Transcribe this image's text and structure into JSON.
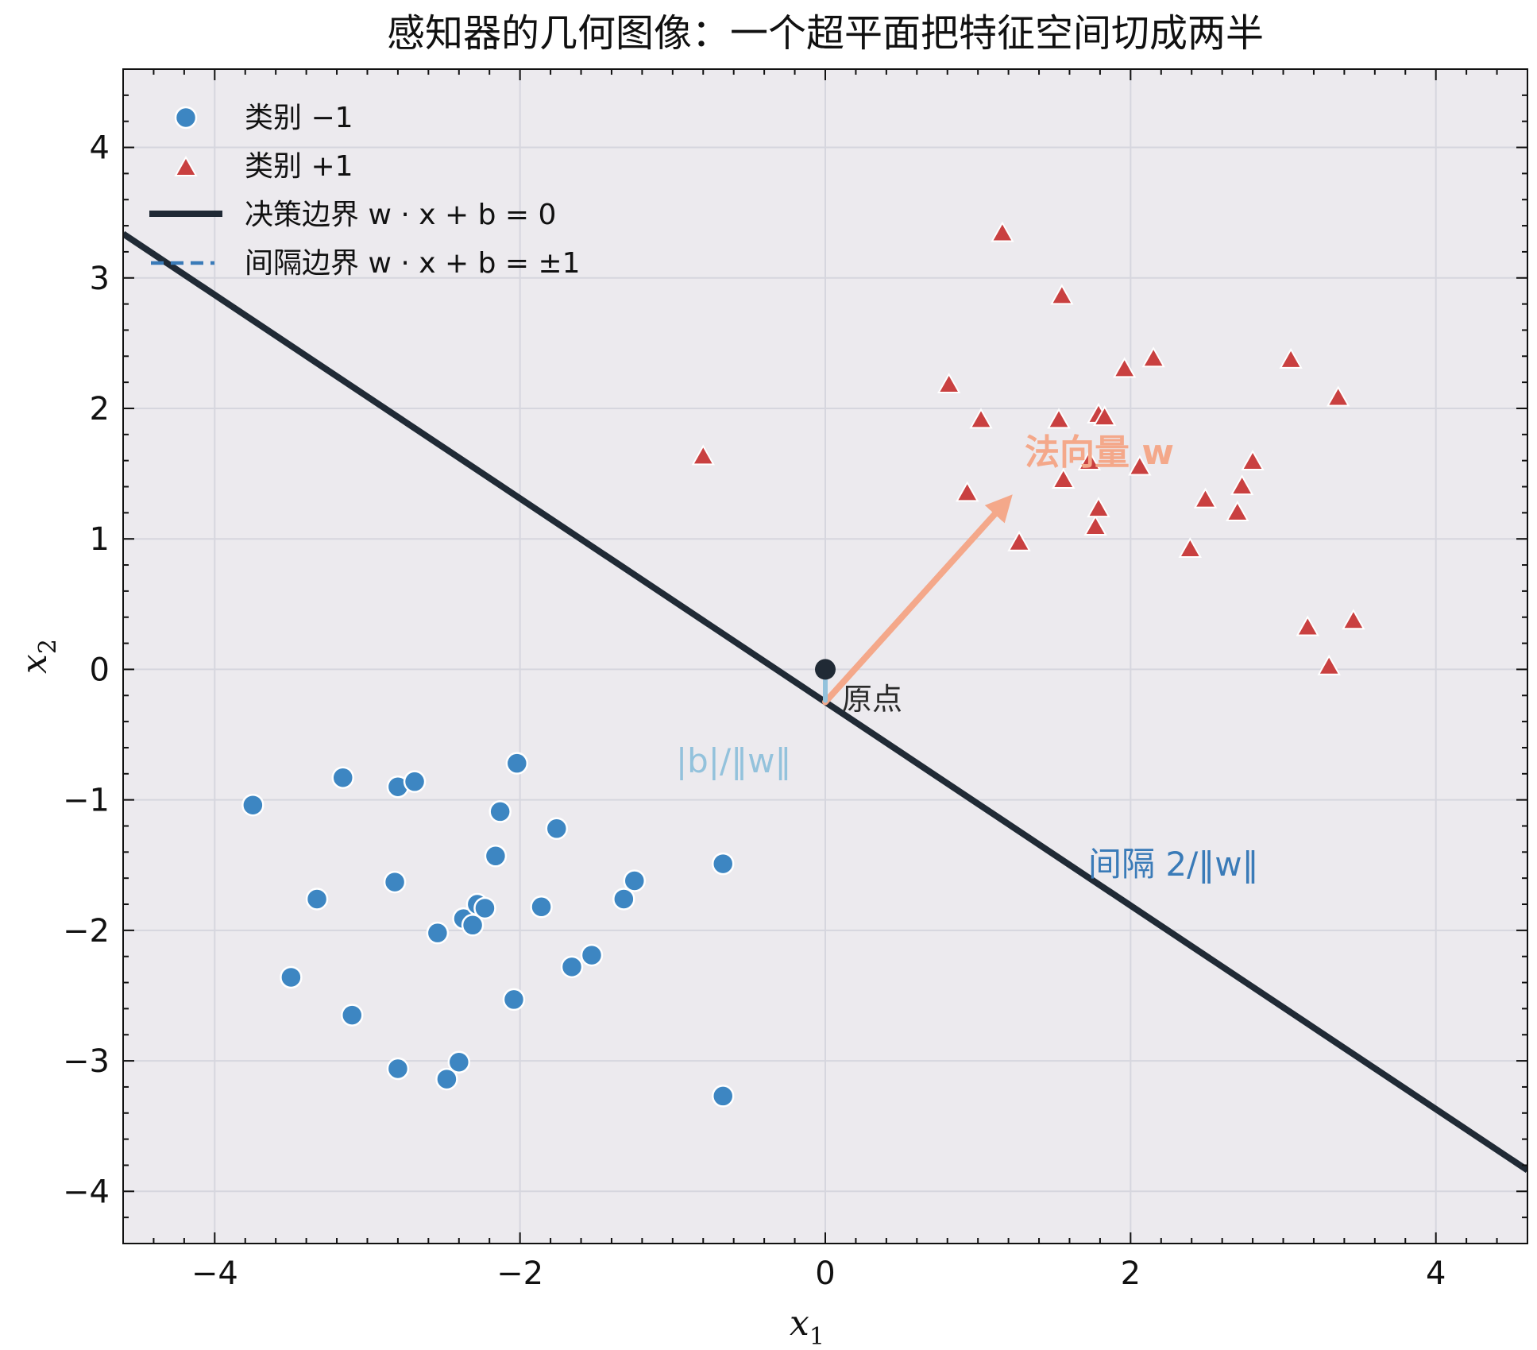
{
  "chart_data": {
    "type": "scatter",
    "title": "感知器的几何图像：一个超平面把特征空间切成两半",
    "xlim": [
      -4.6,
      4.6
    ],
    "ylim": [
      -4.4,
      4.6
    ],
    "x_ticks": [
      -4,
      -2,
      0,
      2,
      4
    ],
    "y_ticks": [
      -4,
      -3,
      -2,
      -1,
      0,
      1,
      2,
      3,
      4
    ],
    "x_tick_labels": [
      "−4",
      "−2",
      "0",
      "2",
      "4"
    ],
    "y_tick_labels": [
      "−4",
      "−3",
      "−2",
      "−1",
      "0",
      "1",
      "2",
      "3",
      "4"
    ],
    "xlabel": {
      "main": "x",
      "sub": "1"
    },
    "ylabel": {
      "main": "x",
      "sub": "2"
    },
    "grid": true,
    "legend_position": "top-left",
    "colors": {
      "background": "#eceaee",
      "class_neg": "#3d86c2",
      "class_pos": "#c94040",
      "boundary": "#202a35",
      "margin": "#3a7bb8",
      "normal": "#f4a88a",
      "distance": "#93c2dc",
      "grid": "#d6d6de"
    },
    "series": [
      {
        "name": "类别 −1",
        "marker": "circle",
        "points": [
          [
            -3.75,
            -1.04
          ],
          [
            -3.5,
            -2.36
          ],
          [
            -3.33,
            -1.76
          ],
          [
            -3.16,
            -0.83
          ],
          [
            -3.1,
            -2.65
          ],
          [
            -2.82,
            -1.63
          ],
          [
            -2.8,
            -0.9
          ],
          [
            -2.8,
            -3.06
          ],
          [
            -2.69,
            -0.86
          ],
          [
            -2.54,
            -2.02
          ],
          [
            -2.48,
            -3.14
          ],
          [
            -2.4,
            -3.01
          ],
          [
            -2.37,
            -1.91
          ],
          [
            -2.31,
            -1.96
          ],
          [
            -2.28,
            -1.8
          ],
          [
            -2.23,
            -1.83
          ],
          [
            -2.16,
            -1.43
          ],
          [
            -2.13,
            -1.09
          ],
          [
            -2.04,
            -2.53
          ],
          [
            -2.02,
            -0.72
          ],
          [
            -1.86,
            -1.82
          ],
          [
            -1.76,
            -1.22
          ],
          [
            -1.66,
            -2.28
          ],
          [
            -1.53,
            -2.19
          ],
          [
            -1.32,
            -1.76
          ],
          [
            -1.25,
            -1.62
          ],
          [
            -0.67,
            -1.49
          ],
          [
            -0.67,
            -3.27
          ]
        ]
      },
      {
        "name": "类别 +1",
        "marker": "triangle",
        "points": [
          [
            -0.8,
            1.62
          ],
          [
            0.81,
            2.17
          ],
          [
            0.93,
            1.34
          ],
          [
            1.02,
            1.9
          ],
          [
            1.16,
            3.33
          ],
          [
            1.27,
            0.96
          ],
          [
            1.53,
            1.9
          ],
          [
            1.55,
            2.85
          ],
          [
            1.56,
            1.44
          ],
          [
            1.73,
            1.58
          ],
          [
            1.77,
            1.08
          ],
          [
            1.79,
            1.94
          ],
          [
            1.79,
            1.22
          ],
          [
            1.83,
            1.92
          ],
          [
            1.96,
            2.29
          ],
          [
            2.06,
            1.54
          ],
          [
            2.15,
            2.37
          ],
          [
            2.39,
            0.91
          ],
          [
            2.49,
            1.29
          ],
          [
            2.7,
            1.19
          ],
          [
            2.73,
            1.39
          ],
          [
            2.8,
            1.58
          ],
          [
            3.05,
            2.36
          ],
          [
            3.16,
            0.31
          ],
          [
            3.3,
            0.01
          ],
          [
            3.36,
            2.07
          ],
          [
            3.46,
            0.36
          ]
        ]
      }
    ],
    "decision_boundary": {
      "name": "决策边界 w · x + b = 0",
      "slope": -0.78,
      "intercept": -0.25
    },
    "margin_boundary": {
      "name": "间隔边界 w · x + b = ±1"
    },
    "normal_vector": {
      "from": [
        0,
        -0.25
      ],
      "to": [
        1.18,
        1.28
      ]
    },
    "origin": [
      0,
      0
    ],
    "annotations": {
      "normal_label": "法向量 w",
      "origin_label": "原点",
      "distance_label": "|b|/‖w‖",
      "margin_label": "间隔 2/‖w‖"
    }
  }
}
